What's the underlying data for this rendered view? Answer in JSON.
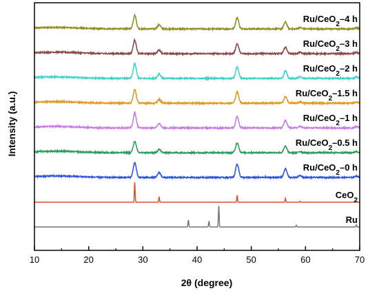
{
  "chart_data": {
    "type": "line",
    "xlabel": "2θ (degree)",
    "ylabel": "Intensity (a.u.)",
    "xlim": [
      10,
      70
    ],
    "xticks": [
      10,
      20,
      30,
      40,
      50,
      60,
      70
    ],
    "y_ticks_shown": false,
    "grid": false,
    "legend": "inline labels at right end of each trace",
    "series": [
      {
        "name": "Ru/CeO2–4 h",
        "label_main": "Ru/CeO",
        "label_sub": "2",
        "label_tail": "–4 h",
        "color": "#8f8f1f",
        "offset": 8.0,
        "peaks": [
          {
            "x": 28.5,
            "h": 0.55
          },
          {
            "x": 33.0,
            "h": 0.17
          },
          {
            "x": 47.4,
            "h": 0.45
          },
          {
            "x": 56.3,
            "h": 0.28
          },
          {
            "x": 59.0,
            "h": 0.05
          },
          {
            "x": 69.4,
            "h": 0.05
          }
        ]
      },
      {
        "name": "Ru/CeO2–3 h",
        "label_main": "Ru/CeO",
        "label_sub": "2",
        "label_tail": "–3 h",
        "color": "#8b4a4a",
        "offset": 7.0,
        "peaks": [
          {
            "x": 28.5,
            "h": 0.55
          },
          {
            "x": 33.0,
            "h": 0.15
          },
          {
            "x": 47.4,
            "h": 0.4
          },
          {
            "x": 56.3,
            "h": 0.26
          },
          {
            "x": 59.0,
            "h": 0.05
          },
          {
            "x": 69.4,
            "h": 0.05
          }
        ]
      },
      {
        "name": "Ru/CeO2–2 h",
        "label_main": "Ru/CeO",
        "label_sub": "2",
        "label_tail": "–2 h",
        "color": "#3fd4c8",
        "offset": 6.0,
        "peaks": [
          {
            "x": 28.5,
            "h": 0.6
          },
          {
            "x": 33.0,
            "h": 0.18
          },
          {
            "x": 47.4,
            "h": 0.46
          },
          {
            "x": 56.3,
            "h": 0.3
          },
          {
            "x": 59.0,
            "h": 0.06
          },
          {
            "x": 69.4,
            "h": 0.06
          }
        ]
      },
      {
        "name": "Ru/CeO2–1.5 h",
        "label_main": "Ru/CeO",
        "label_sub": "2",
        "label_tail": "–1.5 h",
        "color": "#e09a22",
        "offset": 5.0,
        "peaks": [
          {
            "x": 28.5,
            "h": 0.55
          },
          {
            "x": 33.0,
            "h": 0.16
          },
          {
            "x": 47.4,
            "h": 0.45
          },
          {
            "x": 56.3,
            "h": 0.26
          },
          {
            "x": 59.0,
            "h": 0.05
          },
          {
            "x": 69.4,
            "h": 0.05
          }
        ]
      },
      {
        "name": "Ru/CeO2–1 h",
        "label_main": "Ru/CeO",
        "label_sub": "2",
        "label_tail": "–1 h",
        "color": "#c67ee6",
        "offset": 4.0,
        "peaks": [
          {
            "x": 28.5,
            "h": 0.6
          },
          {
            "x": 33.0,
            "h": 0.18
          },
          {
            "x": 47.4,
            "h": 0.46
          },
          {
            "x": 56.3,
            "h": 0.3
          },
          {
            "x": 59.0,
            "h": 0.06
          },
          {
            "x": 69.4,
            "h": 0.06
          }
        ]
      },
      {
        "name": "Ru/CeO2–0.5 h",
        "label_main": "Ru/CeO",
        "label_sub": "2",
        "label_tail": "–0.5 h",
        "color": "#2a9d5c",
        "offset": 3.0,
        "peaks": [
          {
            "x": 28.5,
            "h": 0.45
          },
          {
            "x": 33.0,
            "h": 0.14
          },
          {
            "x": 47.4,
            "h": 0.4
          },
          {
            "x": 56.3,
            "h": 0.26
          },
          {
            "x": 59.0,
            "h": 0.05
          },
          {
            "x": 69.4,
            "h": 0.05
          }
        ]
      },
      {
        "name": "Ru/CeO2–0 h",
        "label_main": "Ru/CeO",
        "label_sub": "2",
        "label_tail": "–0 h",
        "color": "#2f55e0",
        "offset": 2.0,
        "peaks": [
          {
            "x": 28.5,
            "h": 0.6
          },
          {
            "x": 33.0,
            "h": 0.2
          },
          {
            "x": 47.4,
            "h": 0.55
          },
          {
            "x": 56.3,
            "h": 0.35
          },
          {
            "x": 59.0,
            "h": 0.08
          },
          {
            "x": 69.4,
            "h": 0.06
          }
        ]
      },
      {
        "name": "CeO2",
        "label_main": "CeO",
        "label_sub": "2",
        "label_tail": "",
        "color": "#d3552c",
        "offset": 1.0,
        "reference": true,
        "peaks": [
          {
            "x": 28.5,
            "h": 0.8
          },
          {
            "x": 33.0,
            "h": 0.22
          },
          {
            "x": 47.4,
            "h": 0.28
          },
          {
            "x": 56.3,
            "h": 0.16
          },
          {
            "x": 59.0,
            "h": 0.04
          },
          {
            "x": 69.4,
            "h": 0.04
          }
        ]
      },
      {
        "name": "Ru",
        "label_main": "Ru",
        "label_sub": "",
        "label_tail": "",
        "color": "#777777",
        "offset": 0.0,
        "reference": true,
        "peaks": [
          {
            "x": 38.4,
            "h": 0.28
          },
          {
            "x": 42.2,
            "h": 0.24
          },
          {
            "x": 44.0,
            "h": 0.85
          },
          {
            "x": 58.3,
            "h": 0.07
          },
          {
            "x": 69.4,
            "h": 0.08
          }
        ]
      }
    ]
  }
}
